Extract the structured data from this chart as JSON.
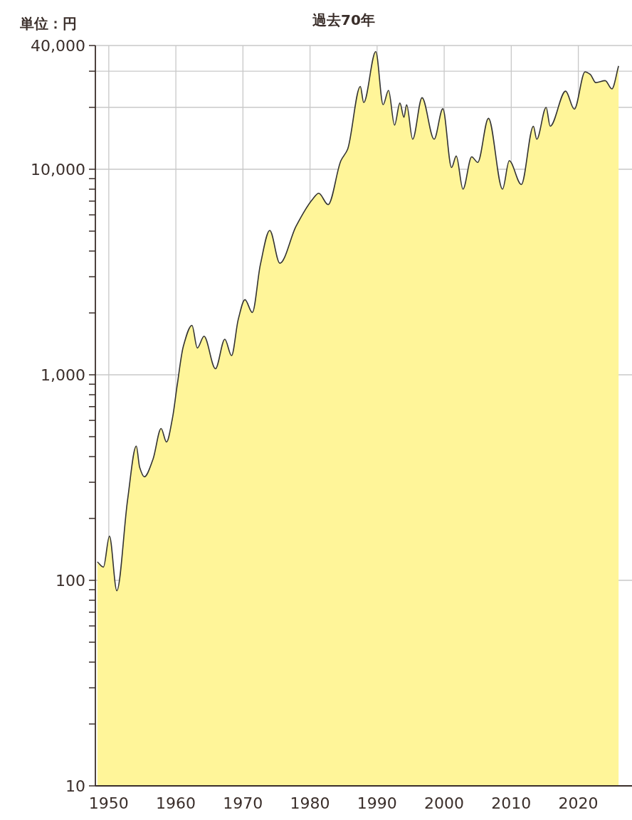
{
  "chart_data": {
    "type": "area",
    "title": "過去70年",
    "ylabel": "単位：円",
    "log": true,
    "grid": true,
    "xlim": [
      1948,
      2028
    ],
    "xticks": [
      1950,
      1960,
      1970,
      1980,
      1990,
      2000,
      2010,
      2020
    ],
    "ylim": [
      10,
      40000
    ],
    "yticks": [
      {
        "value": 10,
        "label": "10"
      },
      {
        "value": 20,
        "label": null
      },
      {
        "value": 30,
        "label": null
      },
      {
        "value": 40,
        "label": null
      },
      {
        "value": 50,
        "label": null
      },
      {
        "value": 60,
        "label": null
      },
      {
        "value": 70,
        "label": null
      },
      {
        "value": 80,
        "label": null
      },
      {
        "value": 90,
        "label": null
      },
      {
        "value": 100,
        "label": "100"
      },
      {
        "value": 200,
        "label": null
      },
      {
        "value": 300,
        "label": null
      },
      {
        "value": 400,
        "label": null
      },
      {
        "value": 500,
        "label": null
      },
      {
        "value": 600,
        "label": null
      },
      {
        "value": 700,
        "label": null
      },
      {
        "value": 800,
        "label": null
      },
      {
        "value": 900,
        "label": null
      },
      {
        "value": 1000,
        "label": "1,000"
      },
      {
        "value": 2000,
        "label": null
      },
      {
        "value": 3000,
        "label": null
      },
      {
        "value": 4000,
        "label": null
      },
      {
        "value": 5000,
        "label": null
      },
      {
        "value": 6000,
        "label": null
      },
      {
        "value": 7000,
        "label": null
      },
      {
        "value": 8000,
        "label": null
      },
      {
        "value": 9000,
        "label": null
      },
      {
        "value": 10000,
        "label": "10,000"
      },
      {
        "value": 40000,
        "label": "40,000"
      }
    ],
    "ref_lines": [
      {
        "axis": "y",
        "value": 20000,
        "color": "#c8c8c8"
      },
      {
        "axis": "y",
        "value": 30000,
        "color": "#c8c8c8"
      }
    ],
    "x": [
      1948.3,
      1949.2,
      1950.1,
      1951.2,
      1952.8,
      1954.1,
      1954.6,
      1955.3,
      1956.6,
      1957.8,
      1958.6,
      1959.5,
      1960.2,
      1961.1,
      1962.4,
      1963.2,
      1964.2,
      1965.9,
      1967.3,
      1968.3,
      1969.3,
      1970.3,
      1971.4,
      1972.6,
      1974.0,
      1975.5,
      1977.9,
      1980.4,
      1981.3,
      1982.7,
      1984.6,
      1985.6,
      1987.5,
      1988.0,
      1989.8,
      1990.9,
      1991.7,
      1992.6,
      1993.4,
      1994.0,
      1994.4,
      1995.3,
      1996.7,
      1998.5,
      1999.8,
      2001.1,
      2001.8,
      2002.8,
      2004.1,
      2005.0,
      2006.6,
      2008.7,
      2009.7,
      2011.5,
      2013.3,
      2013.8,
      2015.2,
      2015.8,
      2018.1,
      2019.4,
      2021.0,
      2021.8,
      2022.6,
      2024.0,
      2025.0,
      2026.0
    ],
    "series": [
      {
        "color": "#fff599",
        "values": [
          123,
          116,
          164,
          89,
          246,
          450,
          355,
          319,
          389,
          548,
          471,
          617,
          891,
          1370,
          1740,
          1350,
          1540,
          1070,
          1490,
          1240,
          1860,
          2320,
          2010,
          3440,
          5040,
          3490,
          5270,
          7160,
          7640,
          6730,
          11000,
          12500,
          25300,
          21100,
          37400,
          20600,
          24200,
          16400,
          21000,
          17900,
          20600,
          14000,
          22300,
          14000,
          19700,
          10200,
          11600,
          8000,
          11500,
          10800,
          17700,
          8000,
          11000,
          8430,
          16200,
          14000,
          20000,
          16200,
          24000,
          19600,
          29800,
          28900,
          26400,
          27000,
          24600,
          31800
        ]
      }
    ]
  }
}
